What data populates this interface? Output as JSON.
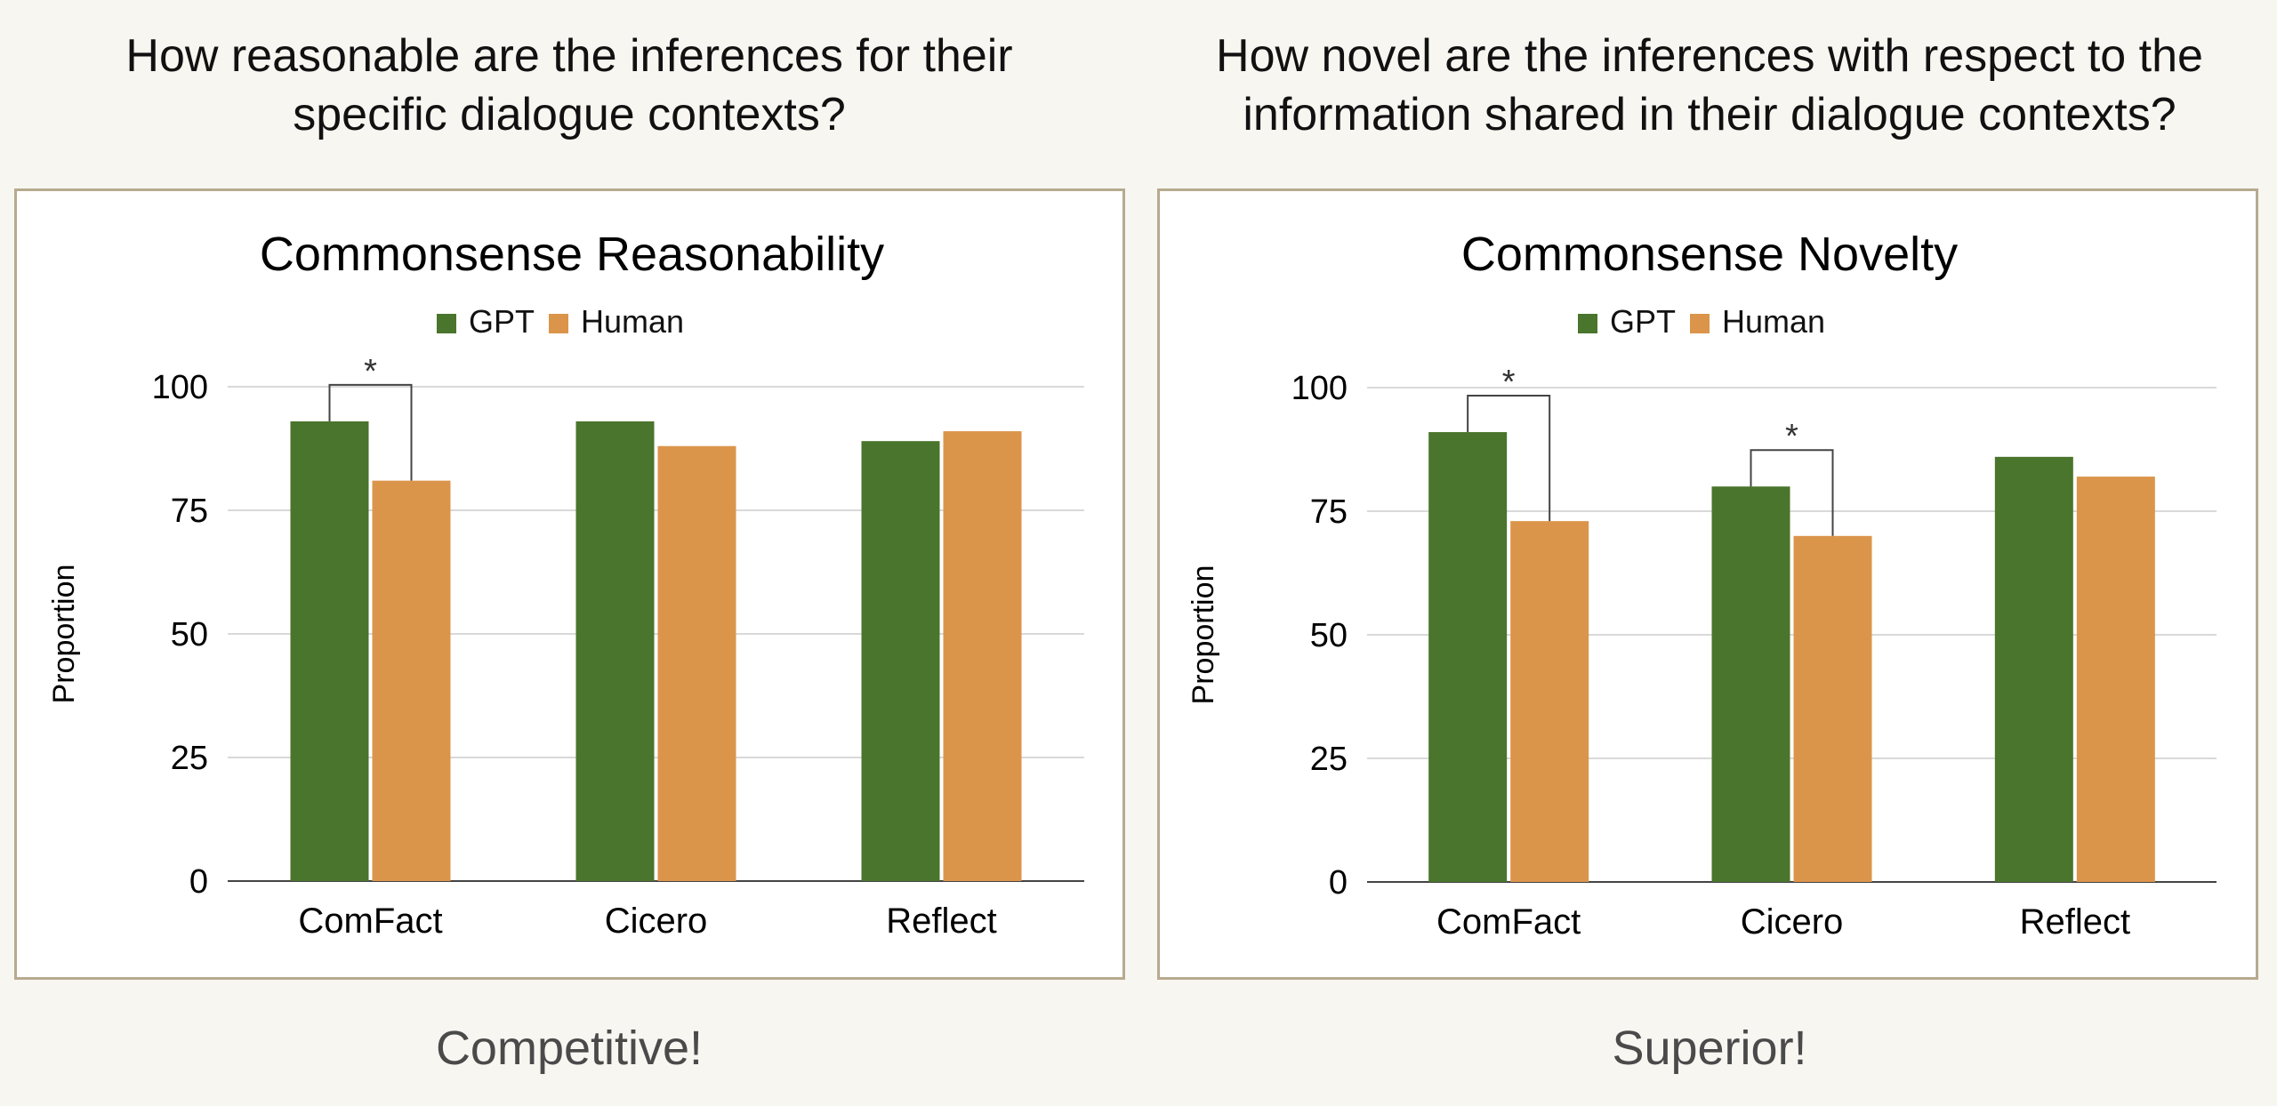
{
  "questions": {
    "left": [
      "How reasonable are the inferences for their",
      "specific dialogue contexts?"
    ],
    "right": [
      "How novel are the inferences with respect to the",
      "information shared in their dialogue contexts?"
    ]
  },
  "verdicts": {
    "left": "Competitive!",
    "right": "Superior!"
  },
  "colors": {
    "GPT": "#4a752c",
    "Human": "#db954b",
    "grid": "#d9d9d9",
    "bracket": "#444444"
  },
  "chart_data": [
    {
      "type": "bar",
      "title": "Commonsense Reasonability",
      "ylabel": "Proportion",
      "categories": [
        "ComFact",
        "Cicero",
        "Reflect"
      ],
      "series": [
        {
          "name": "GPT",
          "values": [
            93,
            93,
            89
          ]
        },
        {
          "name": "Human",
          "values": [
            81,
            88,
            91
          ]
        }
      ],
      "ylim": [
        0,
        100
      ],
      "yticks": [
        0,
        25,
        50,
        75,
        100
      ],
      "legend": "top-center",
      "grid": true,
      "significance": [
        {
          "category_index": 0,
          "label": "*"
        }
      ]
    },
    {
      "type": "bar",
      "title": "Commonsense Novelty",
      "ylabel": "Proportion",
      "categories": [
        "ComFact",
        "Cicero",
        "Reflect"
      ],
      "series": [
        {
          "name": "GPT",
          "values": [
            91,
            80,
            86
          ]
        },
        {
          "name": "Human",
          "values": [
            73,
            70,
            82
          ]
        }
      ],
      "ylim": [
        0,
        100
      ],
      "yticks": [
        0,
        25,
        50,
        75,
        100
      ],
      "legend": "top-center",
      "grid": true,
      "significance": [
        {
          "category_index": 0,
          "label": "*"
        },
        {
          "category_index": 1,
          "label": "*"
        }
      ]
    }
  ]
}
